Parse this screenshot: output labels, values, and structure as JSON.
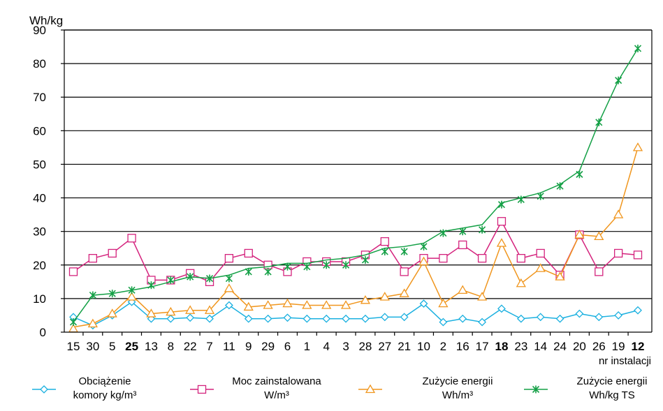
{
  "chart_data": {
    "type": "line",
    "ylabel": "Wh/kg",
    "xlabel": "nr instalacji",
    "ylim": [
      0,
      90
    ],
    "yticks": [
      0,
      10,
      20,
      30,
      40,
      50,
      60,
      70,
      80,
      90
    ],
    "grid": "horizontal",
    "legend_position": "bottom",
    "categories": [
      "15",
      "30",
      "5",
      "25",
      "13",
      "8",
      "22",
      "7",
      "11",
      "9",
      "29",
      "6",
      "1",
      "4",
      "3",
      "28",
      "27",
      "21",
      "10",
      "2",
      "16",
      "17",
      "18",
      "23",
      "14",
      "24",
      "20",
      "26",
      "19",
      "12"
    ],
    "bold_categories": [
      "25",
      "18",
      "12"
    ],
    "series": [
      {
        "name_lines": [
          "Obciążenie",
          "komory kg/m³"
        ],
        "color": "#1ab0e0",
        "marker": "diamond",
        "values": [
          4.5,
          2,
          5,
          9,
          4,
          4,
          4.3,
          4,
          8,
          4,
          4,
          4.3,
          4,
          4,
          4,
          4,
          4.5,
          4.5,
          8.5,
          3,
          4,
          3,
          7,
          4,
          4.5,
          4,
          5.5,
          4.5,
          5,
          6.5
        ],
        "line_values": [
          4.5,
          2,
          5,
          9,
          4,
          4,
          4.3,
          4,
          8,
          4,
          4,
          4.3,
          4,
          4,
          4,
          4,
          4.5,
          4.5,
          8.5,
          3,
          4,
          3,
          7,
          4,
          4.5,
          4,
          5.5,
          4.5,
          5,
          6.5
        ]
      },
      {
        "name_lines": [
          "Moc zainstalowana",
          "W/m³"
        ],
        "color": "#d4237d",
        "marker": "square",
        "values": [
          18,
          22,
          23.5,
          28,
          15.5,
          15.5,
          17.5,
          15,
          22,
          23.5,
          20,
          18,
          21,
          21,
          21,
          23,
          27,
          18,
          22,
          22,
          26,
          22,
          33,
          22,
          23.5,
          17,
          29,
          18,
          23.5,
          23
        ],
        "line_values": [
          18,
          22,
          23.5,
          28,
          15.5,
          15.5,
          17.5,
          15,
          22,
          23.5,
          20,
          18,
          21,
          21,
          21,
          23,
          27,
          18,
          22,
          22,
          26,
          22,
          33,
          22,
          23.5,
          17,
          29,
          18,
          23.5,
          23
        ]
      },
      {
        "name_lines": [
          "Zużycie energii",
          "Wh/m³"
        ],
        "color": "#f0961e",
        "marker": "triangle",
        "values": [
          1,
          2.5,
          5.5,
          10.5,
          5.5,
          6,
          6.5,
          6.5,
          13,
          7.5,
          8,
          8.5,
          8,
          8,
          8,
          9.5,
          10.5,
          11.5,
          21,
          8.5,
          12.5,
          10.5,
          26.5,
          14.5,
          19,
          16.5,
          29,
          28.5,
          35,
          55
        ],
        "line_values": [
          1.5,
          2.5,
          5.5,
          11,
          5.5,
          6,
          6.5,
          6.5,
          13,
          7.5,
          8,
          8.5,
          8,
          8,
          8,
          9.5,
          10.5,
          11.5,
          21,
          8.5,
          12.5,
          10.5,
          26.5,
          14.5,
          19,
          16.5,
          29,
          28.5,
          35,
          55
        ]
      },
      {
        "name_lines": [
          "Zużycie energii",
          "Wh/kg TS"
        ],
        "color": "#14a046",
        "marker": "asterisk",
        "values": [
          3,
          11,
          11.5,
          12.5,
          14,
          15.5,
          16.5,
          16,
          16,
          18,
          18,
          19.5,
          19.5,
          20,
          20,
          21.5,
          24,
          24,
          25.5,
          29.5,
          30,
          30.5,
          38,
          39.5,
          40.5,
          43.5,
          47,
          62.5,
          75,
          84.5
        ],
        "line_values": [
          3,
          11,
          11.5,
          12.5,
          13.5,
          15,
          16.5,
          16,
          17,
          19,
          19.5,
          20.5,
          20.5,
          21.5,
          22,
          23,
          25,
          25.5,
          26.5,
          30,
          31,
          32,
          38.5,
          40,
          41.5,
          44,
          48,
          62.5,
          75,
          84.5
        ]
      }
    ]
  }
}
